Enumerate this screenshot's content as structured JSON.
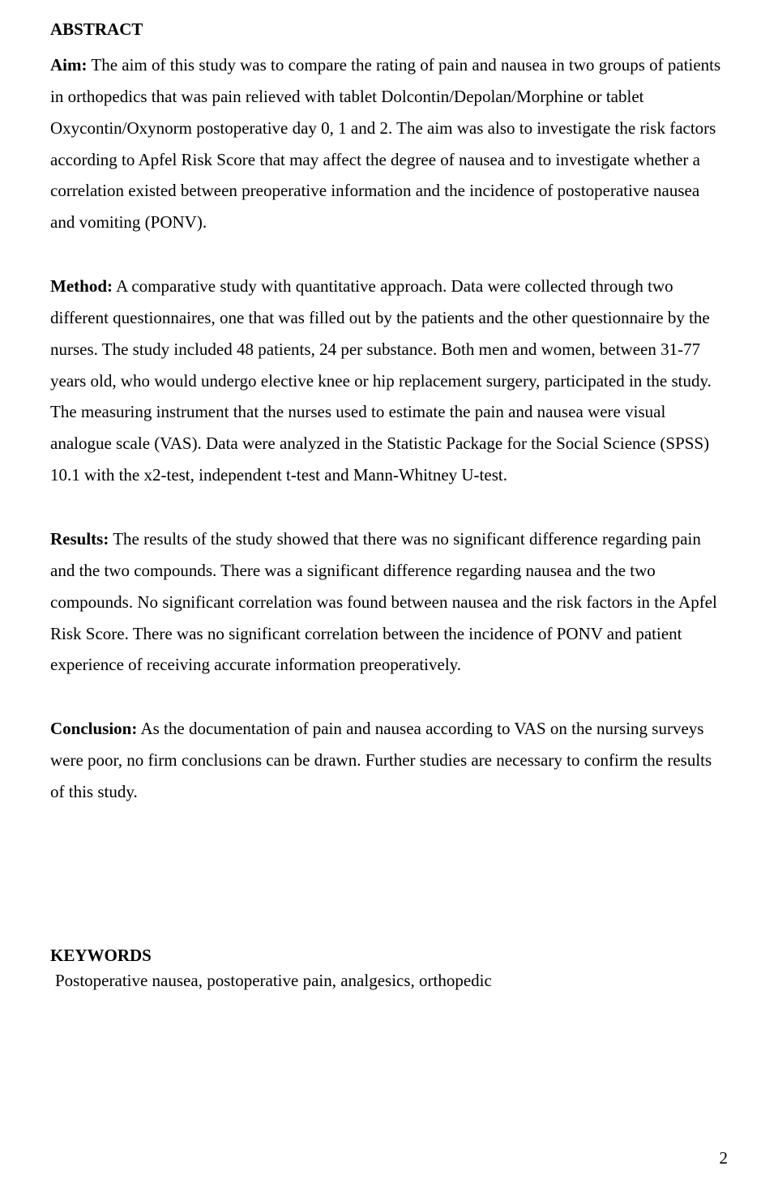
{
  "abstract_heading": "ABSTRACT",
  "aim": {
    "label": "Aim:",
    "text": " The aim of this study was to compare the rating of pain and nausea in two groups of patients in orthopedics that was pain relieved with tablet Dolcontin/Depolan/Morphine or tablet Oxycontin/Oxynorm postoperative day 0, 1 and 2. The aim was also to investigate the risk factors according to Apfel Risk Score that may affect the degree of nausea and to investigate whether a correlation existed between preoperative information and the incidence of postoperative nausea and vomiting (PONV)."
  },
  "method": {
    "label": "Method:",
    "text": " A comparative study with quantitative approach. Data were collected through two different questionnaires, one that was filled out by the patients and the other questionnaire by the nurses. The study included 48 patients, 24 per substance. Both men and women, between 31-77 years old, who would undergo elective knee or hip replacement surgery, participated in the study. The measuring instrument that the nurses used to estimate the pain and nausea were visual analogue scale (VAS). Data were analyzed in the Statistic Package for the Social Science (SPSS) 10.1 with the x2-test, independent t-test and Mann-Whitney U-test."
  },
  "results": {
    "label": "Results:",
    "text": " The results of the study showed that there was no significant difference regarding pain and the two compounds. There was a significant difference regarding nausea and the two compounds. No significant correlation was found between nausea and the risk factors in the Apfel Risk Score. There was no significant correlation between the incidence of PONV and patient experience of receiving accurate information preoperatively."
  },
  "conclusion": {
    "label": "Conclusion:",
    "text": " As the documentation of pain and nausea according to VAS on the nursing surveys were poor, no firm conclusions can be drawn. Further studies are necessary to confirm the results of this study."
  },
  "keywords_heading": "KEYWORDS",
  "keywords_line": "Postoperative nausea, postoperative pain, analgesics, orthopedic",
  "page_number": "2"
}
